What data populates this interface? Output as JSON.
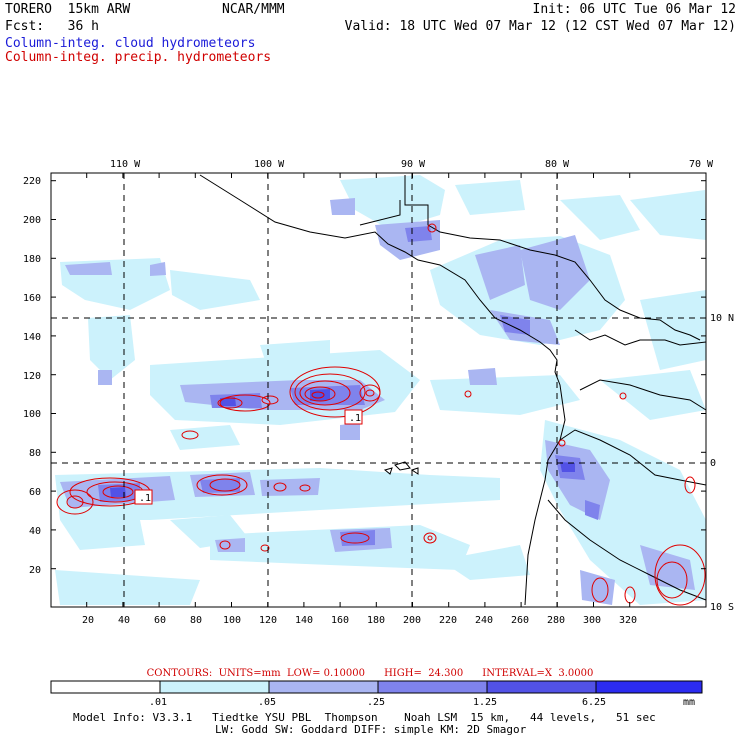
{
  "header": {
    "model": "TORERO  15km ARW",
    "org": "NCAR/MMM",
    "init": "Init: 06 UTC Tue 06 Mar 12",
    "fcst": "Fcst:   36 h",
    "valid": "Valid: 18 UTC Wed 07 Mar 12 (12 CST Wed 07 Mar 12)",
    "field_cloud": "Column-integ. cloud hydrometeors",
    "field_precip": "Column-integ. precip. hydrometeors"
  },
  "colors": {
    "cloud_label": "#1b1bd8",
    "precip_label": "#d00000",
    "contour": "#e00000",
    "coast": "#000000"
  },
  "map": {
    "lon_labels": [
      "110 W",
      "100 W",
      "90 W",
      "80 W",
      "70 W"
    ],
    "lat_labels": [
      "10 N",
      "0",
      "10 S"
    ],
    "x_ticks": [
      "20",
      "40",
      "60",
      "80",
      "100",
      "120",
      "140",
      "160",
      "180",
      "200",
      "220",
      "240",
      "260",
      "280",
      "300",
      "320"
    ],
    "y_ticks": [
      "20",
      "40",
      "60",
      "80",
      "100",
      "120",
      "140",
      "160",
      "180",
      "200",
      "220"
    ],
    "box_label": ".1"
  },
  "contour_info": "CONTOURS:  UNITS=mm  LOW= 0.10000      HIGH=  24.300      INTERVAL=X  3.0000",
  "colorbar": {
    "labels": [
      ".01",
      ".05",
      ".25",
      "1.25",
      "6.25"
    ],
    "unit": "mm",
    "colors": [
      "#ffffff",
      "#ccf2fc",
      "#aab6f2",
      "#7f83ec",
      "#5252e6",
      "#2b2bf0"
    ]
  },
  "footer": {
    "line1": "Model Info: V3.3.1   Tiedtke YSU PBL  Thompson    Noah LSM  15 km,   44 levels,   51 sec",
    "line2": "LW: Godd SW: Goddard DIFF: simple KM: 2D Smagor"
  }
}
